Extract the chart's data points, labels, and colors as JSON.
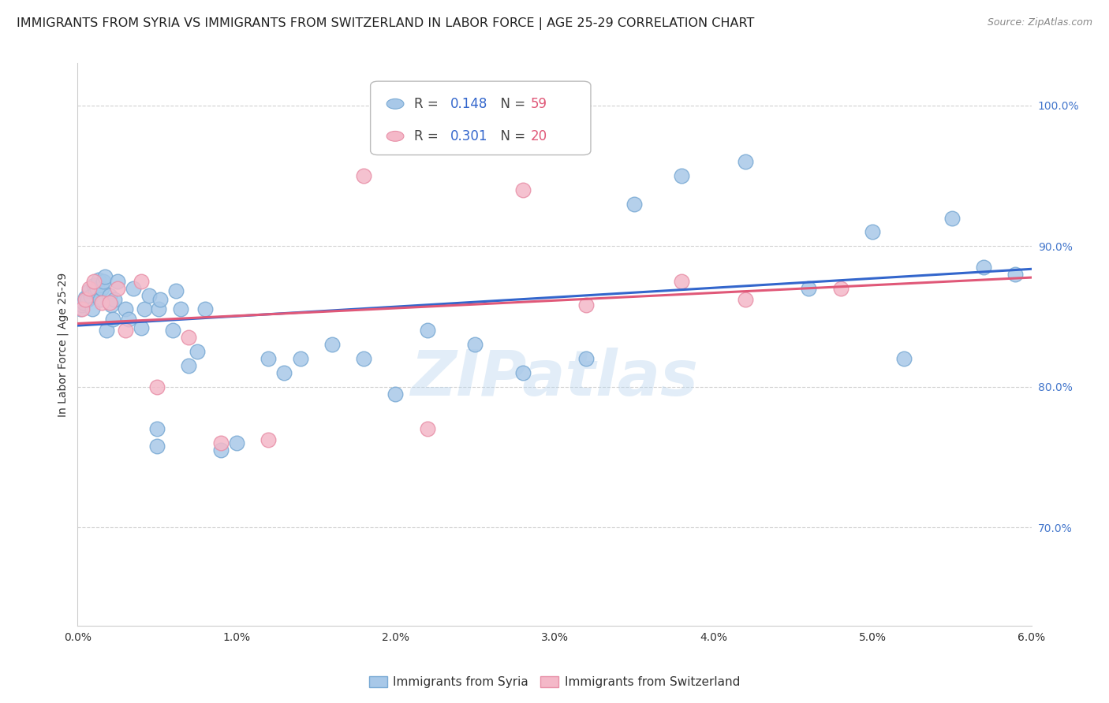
{
  "title": "IMMIGRANTS FROM SYRIA VS IMMIGRANTS FROM SWITZERLAND IN LABOR FORCE | AGE 25-29 CORRELATION CHART",
  "source": "Source: ZipAtlas.com",
  "ylabel": "In Labor Force | Age 25-29",
  "xlim": [
    0.0,
    0.06
  ],
  "ylim": [
    0.63,
    1.03
  ],
  "xticks": [
    0.0,
    0.01,
    0.02,
    0.03,
    0.04,
    0.05,
    0.06
  ],
  "xticklabels": [
    "0.0%",
    "1.0%",
    "2.0%",
    "3.0%",
    "4.0%",
    "5.0%",
    "6.0%"
  ],
  "yticks": [
    0.7,
    0.8,
    0.9,
    1.0
  ],
  "yticklabels": [
    "70.0%",
    "80.0%",
    "90.0%",
    "100.0%"
  ],
  "grid_color": "#cccccc",
  "background_color": "#ffffff",
  "syria_color": "#a8c8e8",
  "switzerland_color": "#f4b8c8",
  "syria_edge_color": "#7aaad4",
  "switzerland_edge_color": "#e890a8",
  "syria_label": "Immigrants from Syria",
  "switzerland_label": "Immigrants from Switzerland",
  "syria_R": "0.148",
  "syria_N": "59",
  "switzerland_R": "0.301",
  "switzerland_N": "20",
  "syria_line_color": "#3366cc",
  "switzerland_line_color": "#e05878",
  "tick_color": "#4477cc",
  "ylabel_color": "#333333",
  "syria_x": [
    0.0002,
    0.0003,
    0.0004,
    0.0005,
    0.0006,
    0.0007,
    0.0008,
    0.0009,
    0.001,
    0.0011,
    0.0012,
    0.0013,
    0.0014,
    0.0015,
    0.0016,
    0.0017,
    0.0018,
    0.002,
    0.0021,
    0.0022,
    0.0023,
    0.0025,
    0.003,
    0.0032,
    0.0035,
    0.004,
    0.0042,
    0.0045,
    0.005,
    0.005,
    0.0051,
    0.0052,
    0.006,
    0.0062,
    0.0065,
    0.007,
    0.0075,
    0.008,
    0.009,
    0.01,
    0.012,
    0.013,
    0.014,
    0.016,
    0.018,
    0.02,
    0.022,
    0.025,
    0.028,
    0.032,
    0.035,
    0.038,
    0.042,
    0.046,
    0.05,
    0.052,
    0.055,
    0.057,
    0.059
  ],
  "syria_y": [
    0.855,
    0.858,
    0.86,
    0.863,
    0.862,
    0.868,
    0.864,
    0.855,
    0.872,
    0.867,
    0.87,
    0.876,
    0.862,
    0.87,
    0.875,
    0.878,
    0.84,
    0.865,
    0.858,
    0.848,
    0.862,
    0.875,
    0.855,
    0.848,
    0.87,
    0.842,
    0.855,
    0.865,
    0.758,
    0.77,
    0.855,
    0.862,
    0.84,
    0.868,
    0.855,
    0.815,
    0.825,
    0.855,
    0.755,
    0.76,
    0.82,
    0.81,
    0.82,
    0.83,
    0.82,
    0.795,
    0.84,
    0.83,
    0.81,
    0.82,
    0.93,
    0.95,
    0.96,
    0.87,
    0.91,
    0.82,
    0.92,
    0.885,
    0.88
  ],
  "switzerland_x": [
    0.0003,
    0.0005,
    0.0007,
    0.001,
    0.0015,
    0.002,
    0.0025,
    0.003,
    0.004,
    0.005,
    0.007,
    0.009,
    0.012,
    0.018,
    0.022,
    0.028,
    0.032,
    0.038,
    0.042,
    0.048
  ],
  "switzerland_y": [
    0.855,
    0.862,
    0.87,
    0.875,
    0.86,
    0.86,
    0.87,
    0.84,
    0.875,
    0.8,
    0.835,
    0.76,
    0.762,
    0.95,
    0.77,
    0.94,
    0.858,
    0.875,
    0.862,
    0.87
  ],
  "watermark_text": "ZIPatlas",
  "title_fontsize": 11.5,
  "tick_fontsize": 10,
  "legend_fontsize": 12
}
